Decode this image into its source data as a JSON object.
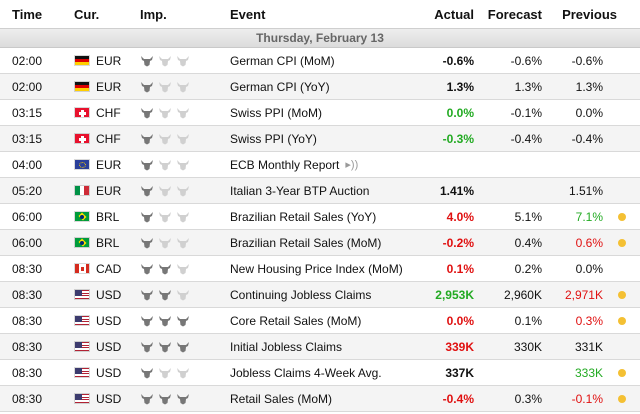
{
  "header": {
    "time": "Time",
    "currency": "Cur.",
    "importance": "Imp.",
    "event": "Event",
    "actual": "Actual",
    "forecast": "Forecast",
    "previous": "Previous"
  },
  "day_label": "Thursday, February 13",
  "colors": {
    "green": "#22aa22",
    "red": "#e01010",
    "dot": "#f4c033",
    "bull_on": "#777777",
    "bull_off": "#d0d0d0"
  },
  "rows": [
    {
      "time": "02:00",
      "flag": "de",
      "currency": "EUR",
      "importance": 1,
      "event": "German CPI (MoM)",
      "actual": "-0.6%",
      "actual_color": "",
      "forecast": "-0.6%",
      "previous": "-0.6%",
      "previous_color": "",
      "speech": false,
      "dot": false
    },
    {
      "time": "02:00",
      "flag": "de",
      "currency": "EUR",
      "importance": 1,
      "event": "German CPI (YoY)",
      "actual": "1.3%",
      "actual_color": "",
      "forecast": "1.3%",
      "previous": "1.3%",
      "previous_color": "",
      "speech": false,
      "dot": false
    },
    {
      "time": "03:15",
      "flag": "ch",
      "currency": "CHF",
      "importance": 1,
      "event": "Swiss PPI (MoM)",
      "actual": "0.0%",
      "actual_color": "green",
      "forecast": "-0.1%",
      "previous": "0.0%",
      "previous_color": "",
      "speech": false,
      "dot": false
    },
    {
      "time": "03:15",
      "flag": "ch",
      "currency": "CHF",
      "importance": 1,
      "event": "Swiss PPI (YoY)",
      "actual": "-0.3%",
      "actual_color": "green",
      "forecast": "-0.4%",
      "previous": "-0.4%",
      "previous_color": "",
      "speech": false,
      "dot": false
    },
    {
      "time": "04:00",
      "flag": "eu",
      "currency": "EUR",
      "importance": 1,
      "event": "ECB Monthly Report",
      "actual": "",
      "actual_color": "",
      "forecast": "",
      "previous": "",
      "previous_color": "",
      "speech": true,
      "dot": false
    },
    {
      "time": "05:20",
      "flag": "it",
      "currency": "EUR",
      "importance": 1,
      "event": "Italian 3-Year BTP Auction",
      "actual": "1.41%",
      "actual_color": "",
      "forecast": "",
      "previous": "1.51%",
      "previous_color": "",
      "speech": false,
      "dot": false
    },
    {
      "time": "06:00",
      "flag": "br",
      "currency": "BRL",
      "importance": 1,
      "event": "Brazilian Retail Sales (YoY)",
      "actual": "4.0%",
      "actual_color": "red",
      "forecast": "5.1%",
      "previous": "7.1%",
      "previous_color": "green",
      "speech": false,
      "dot": true
    },
    {
      "time": "06:00",
      "flag": "br",
      "currency": "BRL",
      "importance": 1,
      "event": "Brazilian Retail Sales (MoM)",
      "actual": "-0.2%",
      "actual_color": "red",
      "forecast": "0.4%",
      "previous": "0.6%",
      "previous_color": "red",
      "speech": false,
      "dot": true
    },
    {
      "time": "08:30",
      "flag": "ca",
      "currency": "CAD",
      "importance": 2,
      "event": "New Housing Price Index (MoM)",
      "actual": "0.1%",
      "actual_color": "red",
      "forecast": "0.2%",
      "previous": "0.0%",
      "previous_color": "",
      "speech": false,
      "dot": false
    },
    {
      "time": "08:30",
      "flag": "us",
      "currency": "USD",
      "importance": 2,
      "event": "Continuing Jobless Claims",
      "actual": "2,953K",
      "actual_color": "green",
      "forecast": "2,960K",
      "previous": "2,971K",
      "previous_color": "red",
      "speech": false,
      "dot": true
    },
    {
      "time": "08:30",
      "flag": "us",
      "currency": "USD",
      "importance": 3,
      "event": "Core Retail Sales (MoM)",
      "actual": "0.0%",
      "actual_color": "red",
      "forecast": "0.1%",
      "previous": "0.3%",
      "previous_color": "red",
      "speech": false,
      "dot": true
    },
    {
      "time": "08:30",
      "flag": "us",
      "currency": "USD",
      "importance": 3,
      "event": "Initial Jobless Claims",
      "actual": "339K",
      "actual_color": "red",
      "forecast": "330K",
      "previous": "331K",
      "previous_color": "",
      "speech": false,
      "dot": false
    },
    {
      "time": "08:30",
      "flag": "us",
      "currency": "USD",
      "importance": 1,
      "event": "Jobless Claims 4-Week Avg.",
      "actual": "337K",
      "actual_color": "",
      "forecast": "",
      "previous": "333K",
      "previous_color": "green",
      "speech": false,
      "dot": true
    },
    {
      "time": "08:30",
      "flag": "us",
      "currency": "USD",
      "importance": 3,
      "event": "Retail Sales (MoM)",
      "actual": "-0.4%",
      "actual_color": "red",
      "forecast": "0.3%",
      "previous": "-0.1%",
      "previous_color": "red",
      "speech": false,
      "dot": true
    }
  ]
}
